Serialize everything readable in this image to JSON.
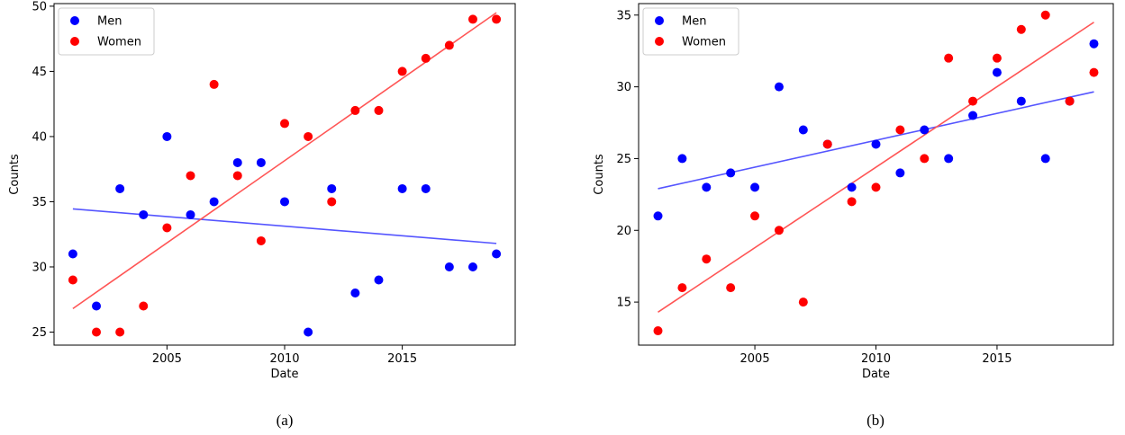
{
  "chart_data": [
    {
      "type": "scatter",
      "panel_caption": "(a)",
      "xlabel": "Date",
      "ylabel": "Counts",
      "xlim": [
        2000.2,
        2019.8
      ],
      "ylim": [
        24.0,
        50.2
      ],
      "xticks": [
        2005,
        2010,
        2015
      ],
      "yticks": [
        25,
        30,
        35,
        40,
        45,
        50
      ],
      "grid": false,
      "legend_position": "top-left",
      "series": [
        {
          "name": "Men",
          "color": "#0000ff",
          "x": [
            2001,
            2002,
            2003,
            2004,
            2005,
            2006,
            2007,
            2008,
            2009,
            2010,
            2011,
            2012,
            2013,
            2014,
            2015,
            2016,
            2017,
            2018,
            2019
          ],
          "y": [
            31,
            27,
            36,
            34,
            40,
            34,
            35,
            38,
            38,
            35,
            25,
            36,
            28,
            29,
            36,
            36,
            30,
            30,
            31
          ],
          "fit": {
            "x": [
              2001,
              2019
            ],
            "y": [
              34.45,
              31.8
            ],
            "color": "#5555ff"
          }
        },
        {
          "name": "Women",
          "color": "#ff0000",
          "x": [
            2001,
            2002,
            2003,
            2004,
            2005,
            2006,
            2007,
            2008,
            2009,
            2010,
            2011,
            2012,
            2013,
            2014,
            2015,
            2016,
            2017,
            2018,
            2019
          ],
          "y": [
            29,
            25,
            25,
            27,
            33,
            37,
            44,
            37,
            32,
            41,
            40,
            35,
            42,
            42,
            45,
            46,
            47,
            49,
            49
          ],
          "fit": {
            "x": [
              2001,
              2019
            ],
            "y": [
              26.8,
              49.5
            ],
            "color": "#ff5555"
          }
        }
      ]
    },
    {
      "type": "scatter",
      "panel_caption": "(b)",
      "xlabel": "Date",
      "ylabel": "Counts",
      "xlim": [
        2000.2,
        2019.8
      ],
      "ylim": [
        12.0,
        35.8
      ],
      "xticks": [
        2005,
        2010,
        2015
      ],
      "yticks": [
        15,
        20,
        25,
        30,
        35
      ],
      "grid": false,
      "legend_position": "top-left",
      "series": [
        {
          "name": "Men",
          "color": "#0000ff",
          "x": [
            2001,
            2002,
            2003,
            2004,
            2005,
            2006,
            2007,
            2008,
            2009,
            2010,
            2011,
            2012,
            2013,
            2014,
            2015,
            2016,
            2017,
            2018,
            2019
          ],
          "y": [
            21,
            25,
            23,
            24,
            23,
            30,
            27,
            26,
            23,
            26,
            24,
            27,
            25,
            28,
            31,
            29,
            25,
            29,
            33
          ],
          "fit": {
            "x": [
              2001,
              2019
            ],
            "y": [
              22.9,
              29.65
            ],
            "color": "#5555ff"
          }
        },
        {
          "name": "Women",
          "color": "#ff0000",
          "x": [
            2001,
            2002,
            2003,
            2004,
            2005,
            2006,
            2007,
            2008,
            2009,
            2010,
            2011,
            2012,
            2013,
            2014,
            2015,
            2016,
            2017,
            2018,
            2019
          ],
          "y": [
            13,
            16,
            18,
            16,
            21,
            20,
            15,
            26,
            22,
            23,
            27,
            25,
            32,
            29,
            32,
            34,
            35,
            29,
            31
          ],
          "fit": {
            "x": [
              2001,
              2019
            ],
            "y": [
              14.3,
              34.5
            ],
            "color": "#ff5555"
          }
        }
      ]
    }
  ]
}
